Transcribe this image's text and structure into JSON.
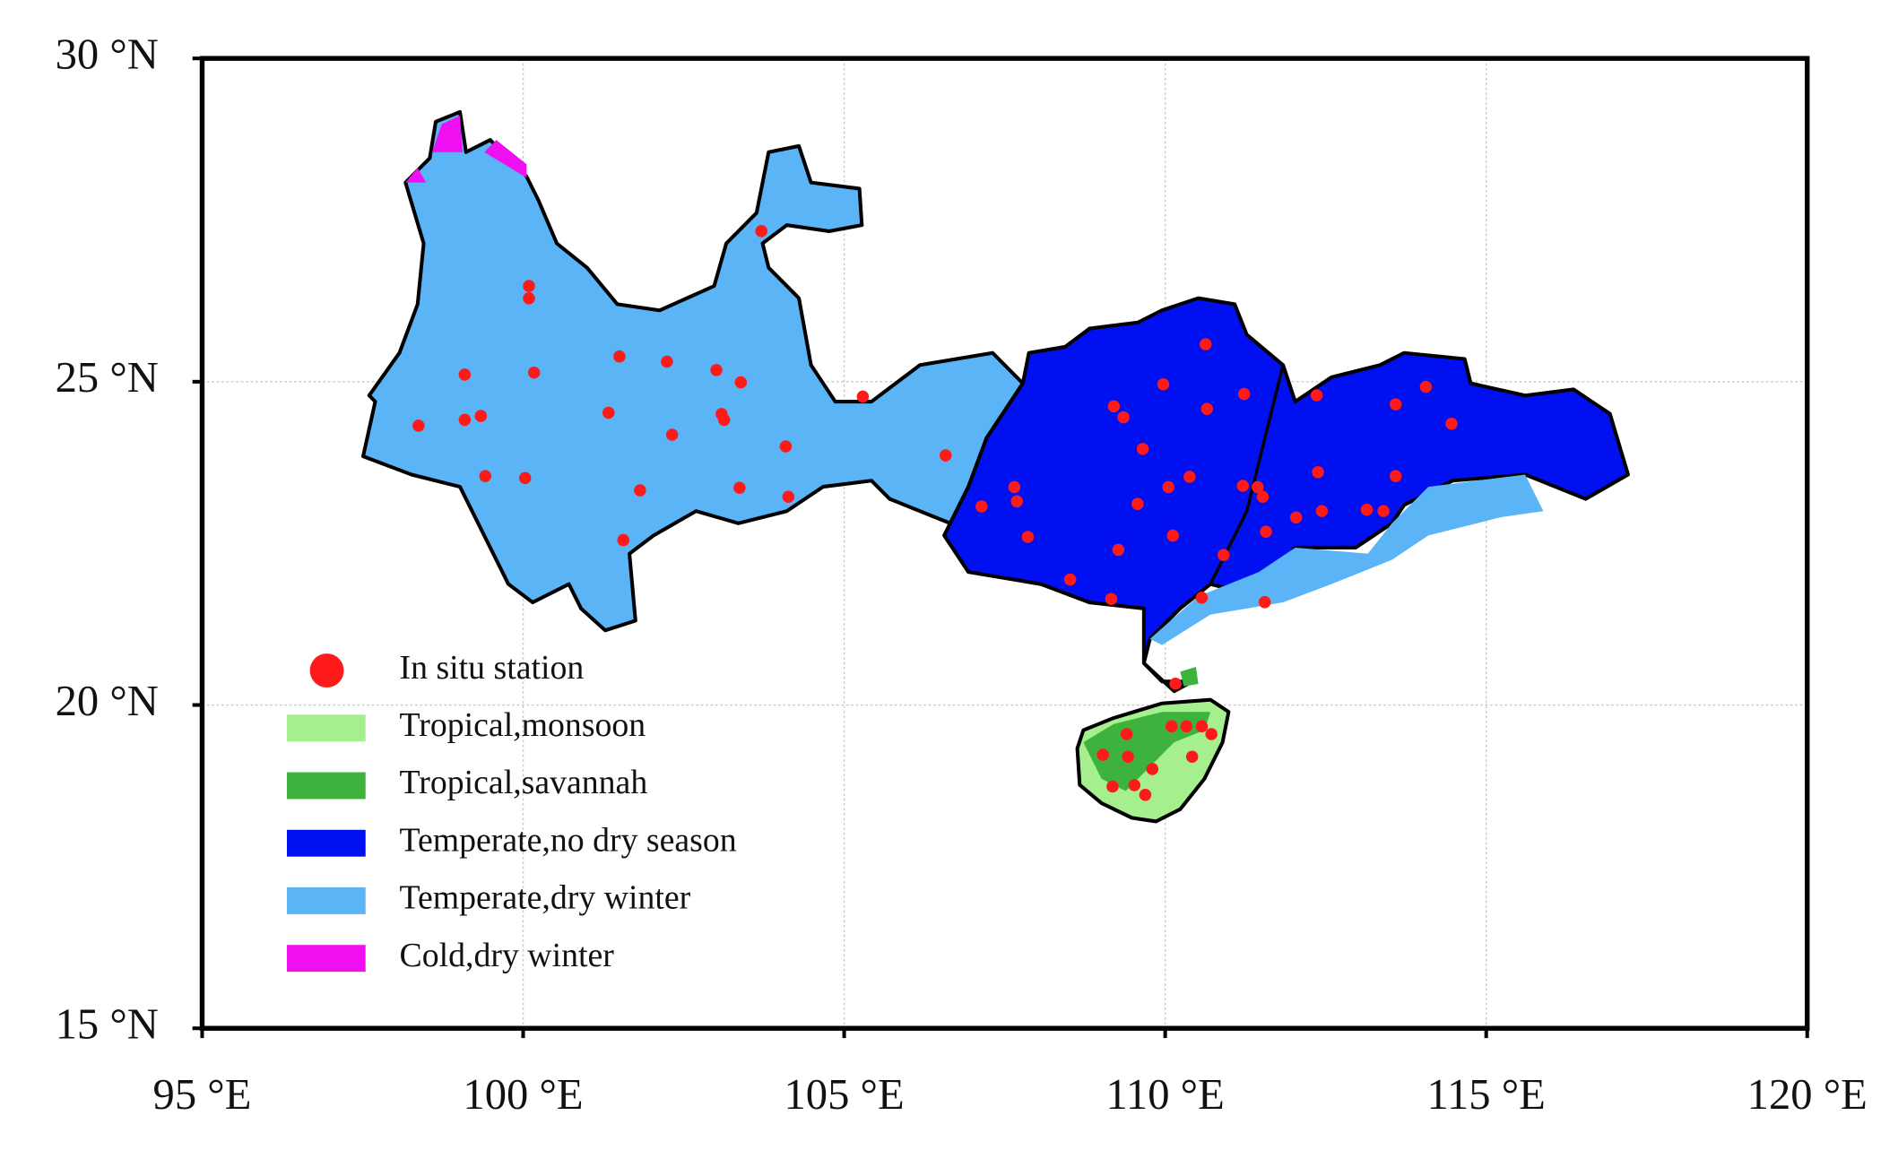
{
  "chart_data": {
    "type": "scatter",
    "x": [
      103.71,
      100.09,
      100.09,
      99.09,
      100.17,
      101.5,
      102.24,
      103.01,
      103.39,
      98.37,
      99.09,
      99.34,
      101.33,
      103.09,
      103.13,
      102.32,
      104.09,
      99.41,
      100.03,
      101.82,
      103.37,
      104.13,
      101.56,
      105.29,
      106.58,
      107.14,
      107.65,
      107.69,
      107.86,
      108.52,
      109.16,
      109.2,
      109.35,
      109.65,
      109.97,
      110.63,
      110.65,
      110.05,
      109.57,
      110.38,
      110.12,
      109.27,
      111.23,
      111.21,
      111.44,
      111.52,
      111.57,
      110.91,
      110.57,
      112.36,
      112.38,
      112.04,
      112.44,
      113.14,
      113.4,
      113.59,
      113.59,
      114.06,
      114.46,
      111.55,
      110.16,
      109.4,
      110.1,
      110.33,
      110.57,
      110.72,
      109.03,
      109.42,
      109.8,
      110.42,
      109.18,
      109.52,
      109.69
    ],
    "series": [
      {
        "name": "In situ station",
        "color": "#ff1a1a",
        "values": [
          27.33,
          26.48,
          26.29,
          25.11,
          25.14,
          25.39,
          25.31,
          25.18,
          24.99,
          24.32,
          24.41,
          24.47,
          24.52,
          24.5,
          24.41,
          24.18,
          24.0,
          23.54,
          23.51,
          23.32,
          23.36,
          23.22,
          22.55,
          24.77,
          23.86,
          23.07,
          23.37,
          23.15,
          22.6,
          21.94,
          21.64,
          24.62,
          24.45,
          23.96,
          24.96,
          25.58,
          24.58,
          23.37,
          23.11,
          23.53,
          22.62,
          22.4,
          24.81,
          23.39,
          23.37,
          23.22,
          22.68,
          22.32,
          21.66,
          24.79,
          23.6,
          22.9,
          23.0,
          23.02,
          23.0,
          24.65,
          23.54,
          24.92,
          24.35,
          21.59,
          20.33,
          19.55,
          19.67,
          19.67,
          19.67,
          19.55,
          19.23,
          19.2,
          19.01,
          19.2,
          18.74,
          18.76,
          18.61
        ]
      }
    ],
    "regions": [
      {
        "name": "Tropical,monsoon",
        "color": "#a6ef8e"
      },
      {
        "name": "Tropical,savannah",
        "color": "#3db33d"
      },
      {
        "name": "Temperate,no dry season",
        "color": "#0010f0"
      },
      {
        "name": "Temperate,dry winter",
        "color": "#5ab4f5"
      },
      {
        "name": "Cold,dry winter",
        "color": "#f00ff0"
      }
    ],
    "xlim": [
      95,
      120
    ],
    "ylim": [
      15,
      30
    ],
    "xticks": [
      {
        "value": 95,
        "label": "95 °E"
      },
      {
        "value": 100,
        "label": "100 °E"
      },
      {
        "value": 105,
        "label": "105 °E"
      },
      {
        "value": 110,
        "label": "110 °E"
      },
      {
        "value": 115,
        "label": "115 °E"
      },
      {
        "value": 120,
        "label": "120 °E"
      }
    ],
    "yticks": [
      {
        "value": 15,
        "label": "15 °N"
      },
      {
        "value": 20,
        "label": "20 °N"
      },
      {
        "value": 25,
        "label": "25 °N"
      },
      {
        "value": 30,
        "label": "30 °N"
      }
    ],
    "grid": true
  }
}
